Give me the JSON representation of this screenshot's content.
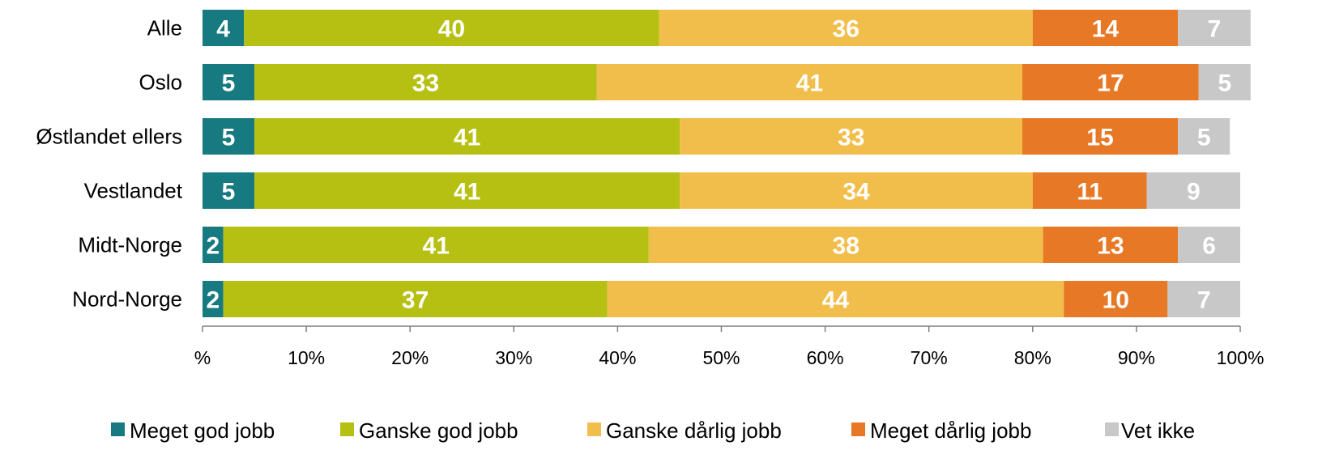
{
  "chart_data": {
    "type": "bar",
    "orientation": "horizontal",
    "stacked": true,
    "categories": [
      "Alle",
      "Oslo",
      "Østlandet ellers",
      "Vestlandet",
      "Midt-Norge",
      "Nord-Norge"
    ],
    "series": [
      {
        "name": "Meget god jobb",
        "color": "#177A80",
        "values": [
          4,
          5,
          5,
          5,
          2,
          2
        ]
      },
      {
        "name": "Ganske god jobb",
        "color": "#B5C013",
        "values": [
          40,
          33,
          41,
          41,
          41,
          37
        ]
      },
      {
        "name": "Ganske dårlig jobb",
        "color": "#F2BE4B",
        "values": [
          36,
          41,
          33,
          34,
          38,
          44
        ]
      },
      {
        "name": "Meget dårlig jobb",
        "color": "#E77826",
        "values": [
          14,
          17,
          15,
          11,
          13,
          10
        ]
      },
      {
        "name": "Vet ikke",
        "color": "#C8C8C8",
        "values": [
          7,
          5,
          5,
          9,
          6,
          7
        ]
      }
    ],
    "x_ticks": [
      "%",
      "10%",
      "20%",
      "30%",
      "40%",
      "50%",
      "60%",
      "70%",
      "80%",
      "90%",
      "100%"
    ],
    "xlim": [
      0,
      100
    ],
    "grid": false,
    "legend_position": "bottom",
    "title": "",
    "xlabel": "",
    "ylabel": ""
  }
}
